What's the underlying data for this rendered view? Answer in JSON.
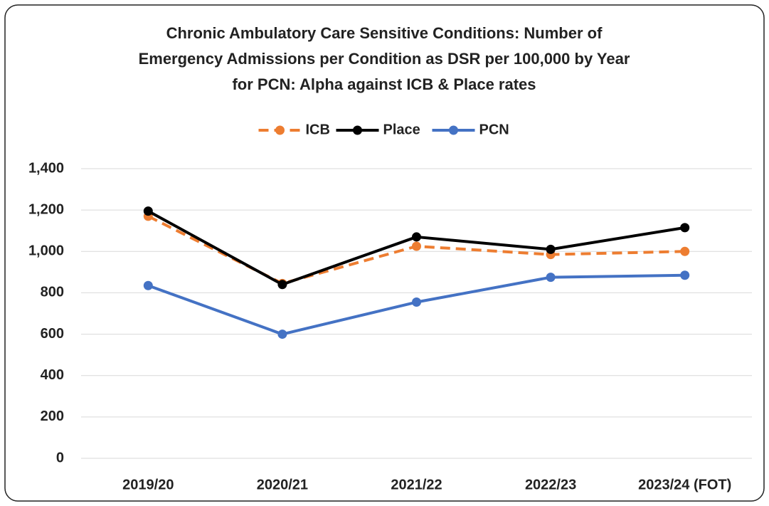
{
  "chart_data": {
    "type": "line",
    "title": [
      "Chronic Ambulatory Care Sensitive Conditions: Number of",
      "Emergency Admissions per Condition as DSR per 100,000 by Year",
      "for PCN: Alpha against ICB & Place rates"
    ],
    "categories": [
      "2019/20",
      "2020/21",
      "2021/22",
      "2022/23",
      "2023/24 (FOT)"
    ],
    "series": [
      {
        "name": "ICB",
        "color": "#ed7d31",
        "dashed": true,
        "values": [
          1170,
          845,
          1025,
          985,
          1000
        ]
      },
      {
        "name": "Place",
        "color": "#000000",
        "dashed": false,
        "values": [
          1195,
          840,
          1070,
          1010,
          1115
        ]
      },
      {
        "name": "PCN",
        "color": "#4472c4",
        "dashed": false,
        "values": [
          835,
          600,
          755,
          875,
          885
        ]
      }
    ],
    "ylim": [
      0,
      1400
    ],
    "yticks": [
      0,
      200,
      400,
      600,
      800,
      {
        "value": 1000,
        "label": "1,000"
      },
      {
        "value": 1200,
        "label": "1,200"
      },
      {
        "value": 1400,
        "label": "1,400"
      }
    ],
    "grid": true,
    "legend": "top"
  }
}
